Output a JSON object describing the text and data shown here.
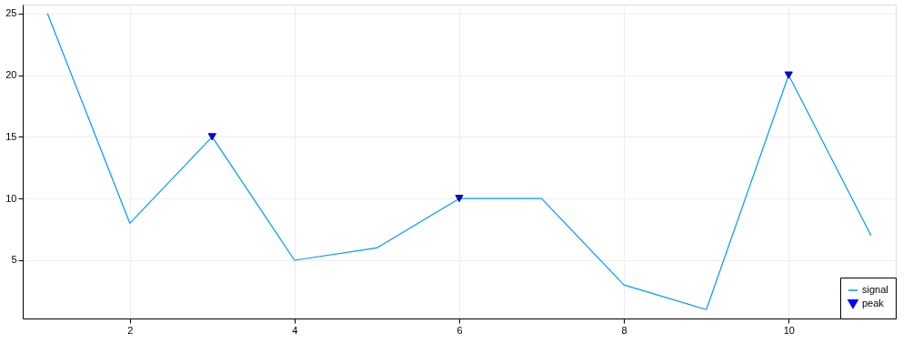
{
  "chart_data": {
    "type": "line",
    "x": [
      1,
      2,
      3,
      4,
      5,
      6,
      7,
      8,
      9,
      10,
      11
    ],
    "series": [
      {
        "name": "signal",
        "color": "#009afa",
        "values": [
          25,
          8,
          15,
          5,
          6,
          10,
          10,
          3,
          1,
          20,
          7
        ]
      },
      {
        "name": "peak",
        "type": "scatter",
        "marker": "triangle",
        "color": "#0000ff",
        "x": [
          3,
          6,
          10
        ],
        "values": [
          15,
          10,
          20
        ]
      }
    ],
    "xlim": [
      0.7,
      11.3
    ],
    "ylim": [
      0.28,
      25.72
    ],
    "xticks": [
      2,
      4,
      6,
      8,
      10
    ],
    "yticks": [
      5,
      10,
      15,
      20,
      25
    ],
    "grid": true,
    "legend": "bottom right"
  }
}
